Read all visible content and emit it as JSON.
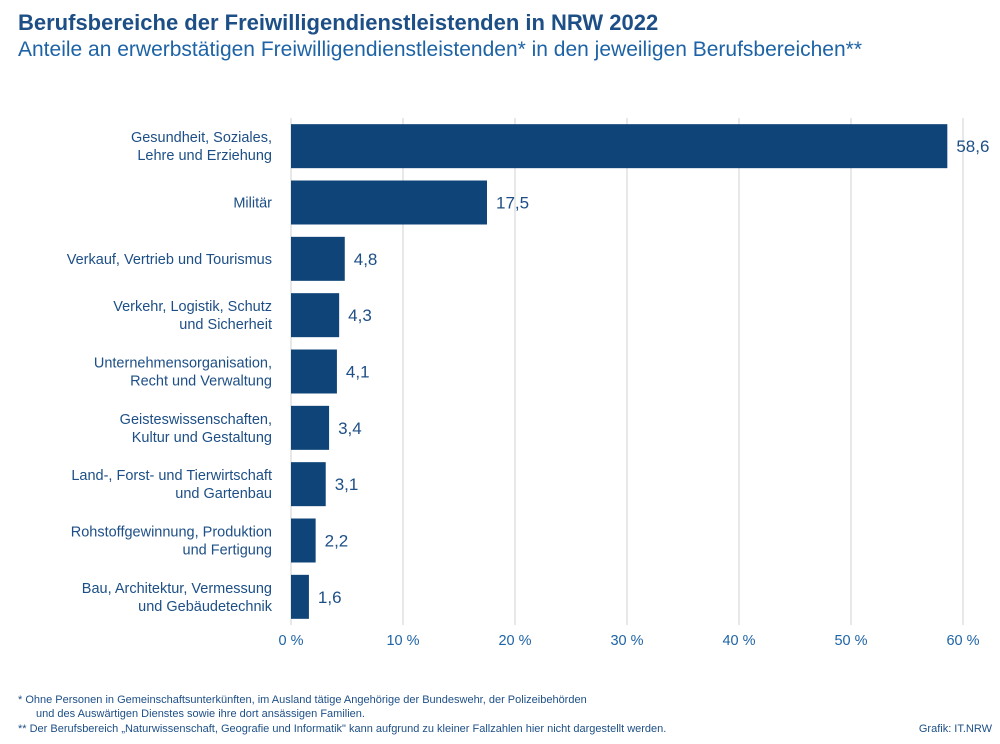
{
  "title": "Berufsbereiche der Freiwilligendienstleistenden in NRW 2022",
  "subtitle": "Anteile an erwerbstätigen Freiwilligendienstleistenden* in den jeweiligen Berufsbereichen**",
  "footnotes": {
    "line1": "*  Ohne Personen in Gemeinschaftsunterkünften, im Ausland tätige Angehörige der Bundeswehr, der Polizeibehörden",
    "line2": "und des Auswärtigen Dienstes sowie ihre dort ansässigen Familien.",
    "line3": "** Der Berufsbereich „Naturwissenschaft, Geografie und Informatik\" kann aufgrund zu kleiner Fallzahlen hier nicht dargestellt werden."
  },
  "source": "Grafik: IT.NRW",
  "colors": {
    "bar": "#0f4478",
    "text": "#1d4f86",
    "axis": "#1d63a6",
    "grid": "#d0d0d0"
  },
  "chart_data": {
    "type": "bar",
    "orientation": "horizontal",
    "categories": [
      [
        "Gesundheit, Soziales,",
        "Lehre und Erziehung"
      ],
      [
        "Militär"
      ],
      [
        "Verkauf, Vertrieb und Tourismus"
      ],
      [
        "Verkehr, Logistik, Schutz",
        "und Sicherheit"
      ],
      [
        "Unternehmensorganisation,",
        "Recht und Verwaltung"
      ],
      [
        "Geisteswissenschaften,",
        "Kultur und Gestaltung"
      ],
      [
        "Land-, Forst- und Tierwirtschaft",
        "und Gartenbau"
      ],
      [
        "Rohstoffgewinnung, Produktion",
        "und Fertigung"
      ],
      [
        "Bau, Architektur, Vermessung",
        "und Gebäudetechnik"
      ]
    ],
    "values": [
      58.6,
      17.5,
      4.8,
      4.3,
      4.1,
      3.4,
      3.1,
      2.2,
      1.6
    ],
    "value_labels": [
      "58,6",
      "17,5",
      "4,8",
      "4,3",
      "4,1",
      "3,4",
      "3,1",
      "2,2",
      "1,6"
    ],
    "x_ticks": [
      0,
      10,
      20,
      30,
      40,
      50,
      60
    ],
    "x_tick_labels": [
      "0 %",
      "10 %",
      "20 %",
      "30 %",
      "40 %",
      "50 %",
      "60 %"
    ],
    "xlim": [
      0,
      60
    ],
    "grid": true
  }
}
